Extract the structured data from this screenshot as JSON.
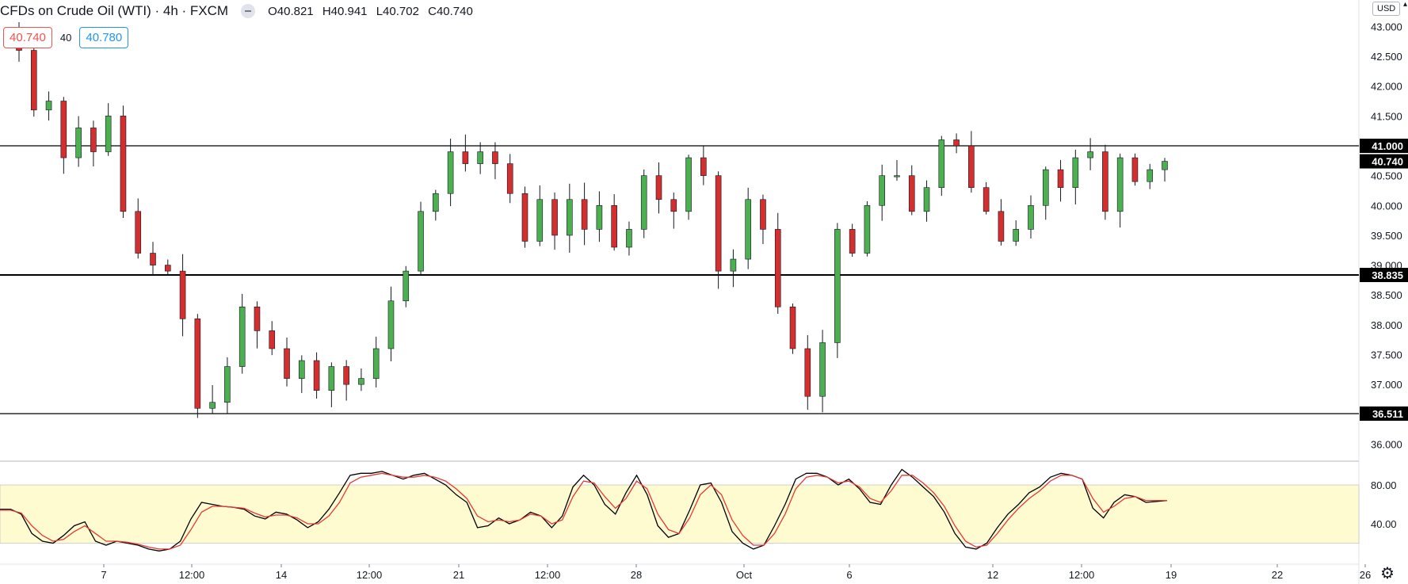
{
  "header": {
    "title": "CFDs on Crude Oil (WTI) · 4h · FXCM",
    "open": "O40.821",
    "high": "H40.941",
    "low": "L40.702",
    "close": "C40.740"
  },
  "quote": {
    "bid": "40.740",
    "spread": "40",
    "ask": "40.780"
  },
  "currency_label": "USD",
  "icons": {
    "settings": "gear-icon",
    "indicator_toggle": "minus-circle-icon"
  },
  "colors": {
    "up": "#26a69a",
    "up_fill": "#4caf50",
    "down": "#d32f2f",
    "stoch_k": "#000000",
    "stoch_d": "#e53935",
    "stoch_band": "#fffbd0"
  },
  "chart_data": [
    {
      "type": "candlestick",
      "symbol": "CFDs on Crude Oil (WTI)",
      "timeframe": "4h",
      "ylim": [
        35.7,
        43.3
      ],
      "y_ticks": [
        "43.000",
        "42.500",
        "42.000",
        "41.500",
        "41.000",
        "40.500",
        "40.000",
        "39.500",
        "39.000",
        "38.500",
        "38.000",
        "37.500",
        "37.000",
        "36.500",
        "36.000"
      ],
      "x_ticks": [
        "7",
        "12:00",
        "14",
        "12:00",
        "21",
        "12:00",
        "28",
        "Oct",
        "6",
        "12",
        "12:00",
        "19",
        "22",
        "26"
      ],
      "horizontal_lines": [
        {
          "value": 41.0,
          "label": "41.000"
        },
        {
          "value": 38.835,
          "label": "38.835"
        },
        {
          "value": 36.511,
          "label": "36.511"
        }
      ],
      "last_price": {
        "value": 40.74,
        "label": "40.740"
      },
      "segments": [
        {
          "start": 42.9,
          "pts": [
            42.6,
            41.6,
            41.75,
            40.8,
            41.3,
            40.9,
            41.5,
            39.9,
            39.2,
            39.0,
            38.9,
            38.1,
            36.6,
            36.7,
            37.3,
            38.3,
            37.9,
            37.6,
            37.1,
            37.4,
            36.9,
            37.3,
            37.0,
            37.1,
            37.6,
            38.4,
            38.9,
            39.9,
            40.2,
            40.9,
            40.7,
            40.9,
            40.7,
            40.2,
            39.4,
            40.1,
            39.5,
            40.1,
            39.6,
            40.0,
            39.3,
            39.6,
            40.5,
            40.1,
            39.9,
            40.8,
            40.5,
            38.9,
            39.1,
            40.1,
            39.6,
            38.3,
            37.6,
            36.8,
            37.7,
            39.6,
            39.2,
            40.0,
            40.5,
            40.5,
            39.9,
            40.3,
            41.1,
            41.0,
            40.3,
            39.9,
            39.4,
            39.6,
            40.0,
            40.6,
            40.3,
            40.8,
            40.9,
            39.9,
            40.8,
            40.4,
            40.6,
            40.74
          ]
        }
      ]
    },
    {
      "type": "line",
      "indicator": "stochastic",
      "ylim": [
        -10,
        110
      ],
      "y_ticks": [
        "80.00",
        "40.00"
      ],
      "band": [
        20,
        80
      ],
      "series": [
        {
          "key": "k",
          "values": [
            55,
            55,
            50,
            30,
            22,
            20,
            28,
            38,
            42,
            22,
            18,
            22,
            20,
            18,
            14,
            12,
            14,
            22,
            45,
            62,
            60,
            58,
            57,
            55,
            48,
            45,
            52,
            50,
            44,
            36,
            42,
            55,
            72,
            90,
            92,
            92,
            94,
            90,
            86,
            90,
            92,
            86,
            80,
            70,
            62,
            36,
            38,
            46,
            40,
            44,
            52,
            48,
            36,
            48,
            78,
            90,
            80,
            60,
            50,
            72,
            90,
            70,
            38,
            26,
            30,
            54,
            80,
            82,
            62,
            32,
            20,
            14,
            18,
            38,
            60,
            86,
            92,
            92,
            88,
            80,
            86,
            76,
            62,
            60,
            80,
            96,
            88,
            78,
            68,
            52,
            30,
            16,
            14,
            20,
            36,
            50,
            60,
            72,
            78,
            88,
            92,
            90,
            86,
            56,
            46,
            62,
            70,
            68,
            62,
            63,
            64
          ]
        },
        {
          "key": "d",
          "values": [
            54,
            54,
            51,
            38,
            28,
            22,
            24,
            32,
            38,
            30,
            22,
            22,
            21,
            19,
            16,
            14,
            14,
            18,
            34,
            52,
            58,
            58,
            57,
            56,
            51,
            47,
            49,
            49,
            46,
            40,
            40,
            48,
            62,
            82,
            88,
            90,
            92,
            90,
            88,
            88,
            90,
            88,
            84,
            76,
            66,
            48,
            42,
            44,
            42,
            44,
            50,
            48,
            40,
            44,
            68,
            84,
            82,
            68,
            56,
            66,
            84,
            76,
            50,
            34,
            30,
            46,
            70,
            80,
            70,
            44,
            28,
            18,
            18,
            30,
            50,
            76,
            88,
            90,
            88,
            82,
            84,
            78,
            66,
            62,
            74,
            90,
            90,
            82,
            72,
            58,
            38,
            22,
            16,
            18,
            30,
            44,
            56,
            66,
            74,
            84,
            90,
            90,
            86,
            66,
            52,
            58,
            66,
            68,
            64,
            64,
            64
          ]
        }
      ]
    }
  ]
}
